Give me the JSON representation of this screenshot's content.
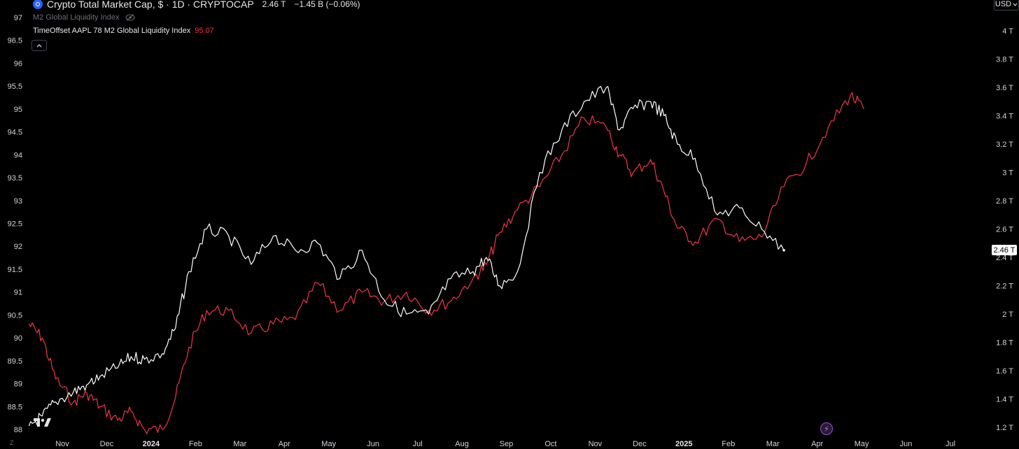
{
  "header": {
    "title": "Crypto Total Market Cap, $ · 1D · CRYPTOCAP",
    "price": "2.46 T",
    "change": "−1.45 B (−0.06%)",
    "indicator1": "M2 Global Liquidity Index",
    "indicator2": "TimeOffset AAPL 78 M2 Global Liquidity Index",
    "indicator2_value": "95.07"
  },
  "currency": "USD",
  "last_price_badge": "2.46 T",
  "colors": {
    "background": "#000000",
    "red_series": "#f23645",
    "white_series": "#ffffff"
  },
  "chart_data": {
    "type": "line",
    "left_axis": {
      "ylim": [
        87.8,
        97.25
      ],
      "ticks": [
        "97",
        "96.5",
        "96",
        "95.5",
        "95",
        "94.5",
        "94",
        "93.5",
        "93",
        "92.5",
        "92",
        "91.5",
        "91",
        "90.5",
        "90",
        "89.5",
        "89",
        "88.5",
        "88"
      ]
    },
    "right_axis": {
      "ylim": [
        1.16,
        4.13
      ],
      "ticks": [
        "4 T",
        "3.8 T",
        "3.6 T",
        "3.4 T",
        "3.2 T",
        "3 T",
        "2.8 T",
        "2.6 T",
        "2.4 T",
        "2.2 T",
        "2 T",
        "1.8 T",
        "1.6 T",
        "1.4 T",
        "1.2 T"
      ]
    },
    "x_labels": [
      "Nov",
      "Dec",
      "2024",
      "Feb",
      "Mar",
      "Apr",
      "May",
      "Jun",
      "Jul",
      "Aug",
      "Sep",
      "Oct",
      "Nov",
      "Dec",
      "2025",
      "Feb",
      "Mar",
      "Apr",
      "May",
      "Jun",
      "Jul"
    ],
    "x_bold": [
      "2024",
      "2025"
    ],
    "series": [
      {
        "name": "TimeOffset AAPL 78 M2 Global Liquidity Index",
        "color": "#f23645",
        "axis": "left",
        "x": [
          0,
          0.3,
          0.6,
          1,
          1.3,
          1.6,
          2,
          2.3,
          2.6,
          3,
          3.3,
          3.6,
          4,
          4.5,
          5,
          5.5,
          6,
          6.5,
          7,
          7.5,
          8,
          8.5,
          9,
          9.5,
          10,
          10.3,
          10.6,
          11,
          11.5,
          12,
          12.5,
          13,
          13.3,
          13.6,
          14,
          14.3,
          14.6,
          15,
          15.5,
          16,
          16.5,
          17,
          17.5,
          18,
          18.5,
          18.8
        ],
        "y": [
          90.3,
          90.0,
          89.1,
          88.6,
          88.8,
          88.5,
          88.2,
          88.4,
          88.0,
          88.0,
          88.7,
          89.8,
          90.6,
          90.6,
          90.1,
          90.3,
          90.4,
          91.2,
          90.6,
          91.0,
          90.8,
          91.0,
          90.6,
          90.8,
          91.3,
          91.6,
          92.3,
          92.8,
          93.3,
          94.0,
          94.8,
          94.6,
          94.0,
          93.6,
          93.9,
          93.2,
          92.4,
          92.1,
          92.6,
          92.1,
          92.2,
          93.3,
          93.8,
          94.6,
          95.3,
          95.0
        ]
      },
      {
        "name": "Crypto Total Market Cap",
        "color": "#ffffff",
        "axis": "right",
        "x": [
          0,
          0.3,
          0.6,
          1,
          1.3,
          1.6,
          2,
          2.3,
          2.6,
          3,
          3.3,
          3.6,
          4,
          4.5,
          5,
          5.5,
          6,
          6.5,
          7,
          7.5,
          8,
          8.5,
          9,
          9.5,
          10,
          10.3,
          10.6,
          11,
          11.5,
          12,
          12.5,
          13,
          13.3,
          13.6,
          14,
          14.3,
          14.6,
          15,
          15.5,
          16,
          16.5,
          17
        ],
        "y": [
          1.21,
          1.28,
          1.38,
          1.45,
          1.5,
          1.56,
          1.62,
          1.7,
          1.68,
          1.72,
          1.9,
          2.3,
          2.6,
          2.55,
          2.35,
          2.55,
          2.45,
          2.5,
          2.25,
          2.45,
          2.1,
          2.0,
          2.0,
          2.25,
          2.3,
          2.4,
          2.2,
          2.3,
          3.0,
          3.3,
          3.5,
          3.6,
          3.3,
          3.45,
          3.5,
          3.4,
          3.2,
          3.1,
          2.7,
          2.75,
          2.6,
          2.45
        ]
      }
    ]
  },
  "misc": {
    "zoom_label": "Z"
  }
}
